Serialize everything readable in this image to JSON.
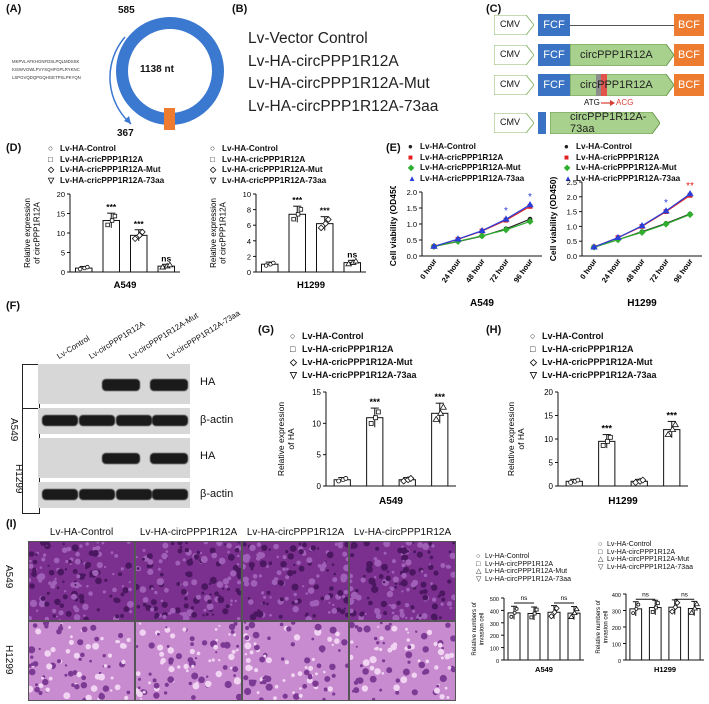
{
  "panel_labels": {
    "A": "(A)",
    "B": "(B)",
    "C": "(C)",
    "D": "(D)",
    "E": "(E)",
    "F": "(F)",
    "G": "(G)",
    "H": "(H)",
    "I": "(I)"
  },
  "panelA": {
    "length_label": "1138 nt",
    "pos_top": "585",
    "pos_bottom": "367",
    "sequence_lines": [
      "MKPVLAFKHGNFDSLPQLMDSSK",
      "KISWVGWLPVYSQHFGPLRYKNC",
      "LSPGVQDQPGQHGETPSLPKYQN"
    ]
  },
  "panelB": {
    "constructs": [
      "Lv-Vector Control",
      "Lv-HA-circPPP1R12A",
      "Lv-HA-circPPP1R12A-Mut",
      "Lv-HA-circPPP1R12A-73aa"
    ]
  },
  "panelC": {
    "cmv": "CMV",
    "fcf": "FCF",
    "bcf": "BCF",
    "circ": "circPPP1R12A",
    "circ73": "circPPP1R12A-73aa",
    "atg": "ATG",
    "acg": "ACG"
  },
  "legend_items": [
    "Lv-HA-Control",
    "Lv-HA-cricPPP1R12A",
    "Lv-HA-cricPPP1R12A-Mut",
    "Lv-HA-cricPPP1R12A-73aa"
  ],
  "legend_items_I": [
    "Lv-HA-Control",
    "Lv-HA-circPPP1R12A",
    "Lv-HA-circPPP1R12A-Mut",
    "Lv-HA-circPPP1R12A-73aa"
  ],
  "legend_markers": [
    "○",
    "□",
    "◇",
    "▽"
  ],
  "panelF": {
    "lanes": [
      "Lv-Control",
      "Lv-circPPP1R12A",
      "Lv-circPPP1R12A-Mut",
      "Lv-circPPP1R12A-73aa"
    ],
    "cells": [
      "A549",
      "H1299"
    ],
    "bands": [
      "HA",
      "β-actin"
    ]
  },
  "panelI": {
    "column_titles": [
      "Lv-HA-Control",
      "Lv-HA-circPPP1R12A",
      "Lv-HA-circPPP1R12A",
      "Lv-HA-circPPP1R12A"
    ],
    "row_labels": [
      "A549",
      "H1299"
    ]
  },
  "chart_data": [
    {
      "id": "D-A549",
      "type": "bar",
      "categories": [
        "Lv-HA-Control",
        "Lv-HA-cricPPP1R12A",
        "Lv-HA-cricPPP1R12A-Mut",
        "Lv-HA-cricPPP1R12A-73aa"
      ],
      "values": [
        1.0,
        13.2,
        9.4,
        1.5
      ],
      "sig": [
        "",
        "***",
        "***",
        "ns"
      ],
      "xlabel": "A549",
      "ylabel": "Relative expression of circPPP1R12A",
      "ylim": [
        0,
        20
      ],
      "yticks": [
        0,
        5,
        10,
        15,
        20
      ]
    },
    {
      "id": "D-H1299",
      "type": "bar",
      "categories": [
        "Lv-HA-Control",
        "Lv-HA-cricPPP1R12A",
        "Lv-HA-cricPPP1R12A-Mut",
        "Lv-HA-cricPPP1R12A-73aa"
      ],
      "values": [
        1.0,
        7.4,
        6.2,
        1.2
      ],
      "sig": [
        "",
        "***",
        "***",
        "ns"
      ],
      "xlabel": "H1299",
      "ylabel": "Relative expression of circPPP1R12A",
      "ylim": [
        0,
        10
      ],
      "yticks": [
        0,
        2,
        4,
        6,
        8,
        10
      ]
    },
    {
      "id": "E-A549",
      "type": "line",
      "x": [
        "0 hour",
        "24 hour",
        "48 hour",
        "72 hour",
        "96 hour"
      ],
      "series": [
        {
          "name": "Lv-HA-Control",
          "values": [
            0.3,
            0.45,
            0.62,
            0.85,
            1.15
          ]
        },
        {
          "name": "Lv-HA-cricPPP1R12A",
          "values": [
            0.3,
            0.52,
            0.78,
            1.12,
            1.55
          ]
        },
        {
          "name": "Lv-HA-cricPPP1R12A-Mut",
          "values": [
            0.3,
            0.46,
            0.63,
            0.82,
            1.08
          ]
        },
        {
          "name": "Lv-HA-cricPPP1R12A-73aa",
          "values": [
            0.3,
            0.53,
            0.79,
            1.15,
            1.6
          ]
        }
      ],
      "sig": [
        "",
        "",
        "",
        "*",
        "*"
      ],
      "xlabel": "A549",
      "ylabel": "Cell viability (OD450)",
      "ylim": [
        0,
        2.0
      ],
      "yticks": [
        0.0,
        0.5,
        1.0,
        1.5,
        2.0
      ]
    },
    {
      "id": "E-H1299",
      "type": "line",
      "x": [
        "0 hour",
        "24 hour",
        "48 hour",
        "72 hour",
        "96 hour"
      ],
      "series": [
        {
          "name": "Lv-HA-Control",
          "values": [
            0.3,
            0.55,
            0.82,
            1.1,
            1.42
          ]
        },
        {
          "name": "Lv-HA-cricPPP1R12A",
          "values": [
            0.3,
            0.62,
            1.0,
            1.5,
            2.05
          ]
        },
        {
          "name": "Lv-HA-cricPPP1R12A-Mut",
          "values": [
            0.3,
            0.55,
            0.8,
            1.08,
            1.4
          ]
        },
        {
          "name": "Lv-HA-cricPPP1R12A-73aa",
          "values": [
            0.3,
            0.62,
            1.02,
            1.52,
            2.1
          ]
        }
      ],
      "sig": [
        "",
        "",
        "",
        "*",
        "**"
      ],
      "xlabel": "H1299",
      "ylabel": "Cell viability (OD450)",
      "ylim": [
        0,
        2.5
      ],
      "yticks": [
        0.0,
        0.5,
        1.0,
        1.5,
        2.0,
        2.5
      ]
    },
    {
      "id": "G",
      "type": "bar",
      "categories": [
        "Lv-HA-Control",
        "Lv-HA-cricPPP1R12A",
        "Lv-HA-cricPPP1R12A-Mut",
        "Lv-HA-cricPPP1R12A-73aa"
      ],
      "values": [
        1.0,
        10.9,
        1.0,
        11.6
      ],
      "sig": [
        "",
        "***",
        "",
        "***"
      ],
      "xlabel": "A549",
      "ylabel": "Relative expression of HA",
      "ylim": [
        0,
        15
      ],
      "yticks": [
        0,
        5,
        10,
        15
      ]
    },
    {
      "id": "H",
      "type": "bar",
      "categories": [
        "Lv-HA-Control",
        "Lv-HA-cricPPP1R12A",
        "Lv-HA-cricPPP1R12A-Mut",
        "Lv-HA-cricPPP1R12A-73aa"
      ],
      "values": [
        1.0,
        9.5,
        1.0,
        12.0
      ],
      "sig": [
        "",
        "***",
        "",
        "***"
      ],
      "xlabel": "H1299",
      "ylabel": "Relative expression of HA",
      "ylim": [
        0,
        20
      ],
      "yticks": [
        0,
        5,
        10,
        15,
        20
      ]
    },
    {
      "id": "I-A549",
      "type": "bar",
      "categories": [
        "Lv-HA-Control",
        "Lv-HA-circPPP1R12A",
        "Lv-HA-circPPP1R12A-Mut",
        "Lv-HA-circPPP1R12A-73aa"
      ],
      "values": [
        380,
        375,
        385,
        378
      ],
      "sig_pairs": [
        "ns",
        "ns"
      ],
      "xlabel": "A549",
      "ylabel": "Relative numbers of invasion cell",
      "ylim": [
        0,
        500
      ],
      "yticks": [
        0,
        100,
        200,
        300,
        400,
        500
      ]
    },
    {
      "id": "I-H1299",
      "type": "bar",
      "categories": [
        "Lv-HA-Control",
        "Lv-HA-circPPP1R12A",
        "Lv-HA-circPPP1R12A-Mut",
        "Lv-HA-circPPP1R12A-73aa"
      ],
      "values": [
        310,
        318,
        320,
        312
      ],
      "sig_pairs": [
        "ns",
        "ns"
      ],
      "xlabel": "H1299",
      "ylabel": "Relative numbers of invasion cell",
      "ylim": [
        0,
        400
      ],
      "yticks": [
        0,
        100,
        200,
        300,
        400
      ]
    }
  ]
}
